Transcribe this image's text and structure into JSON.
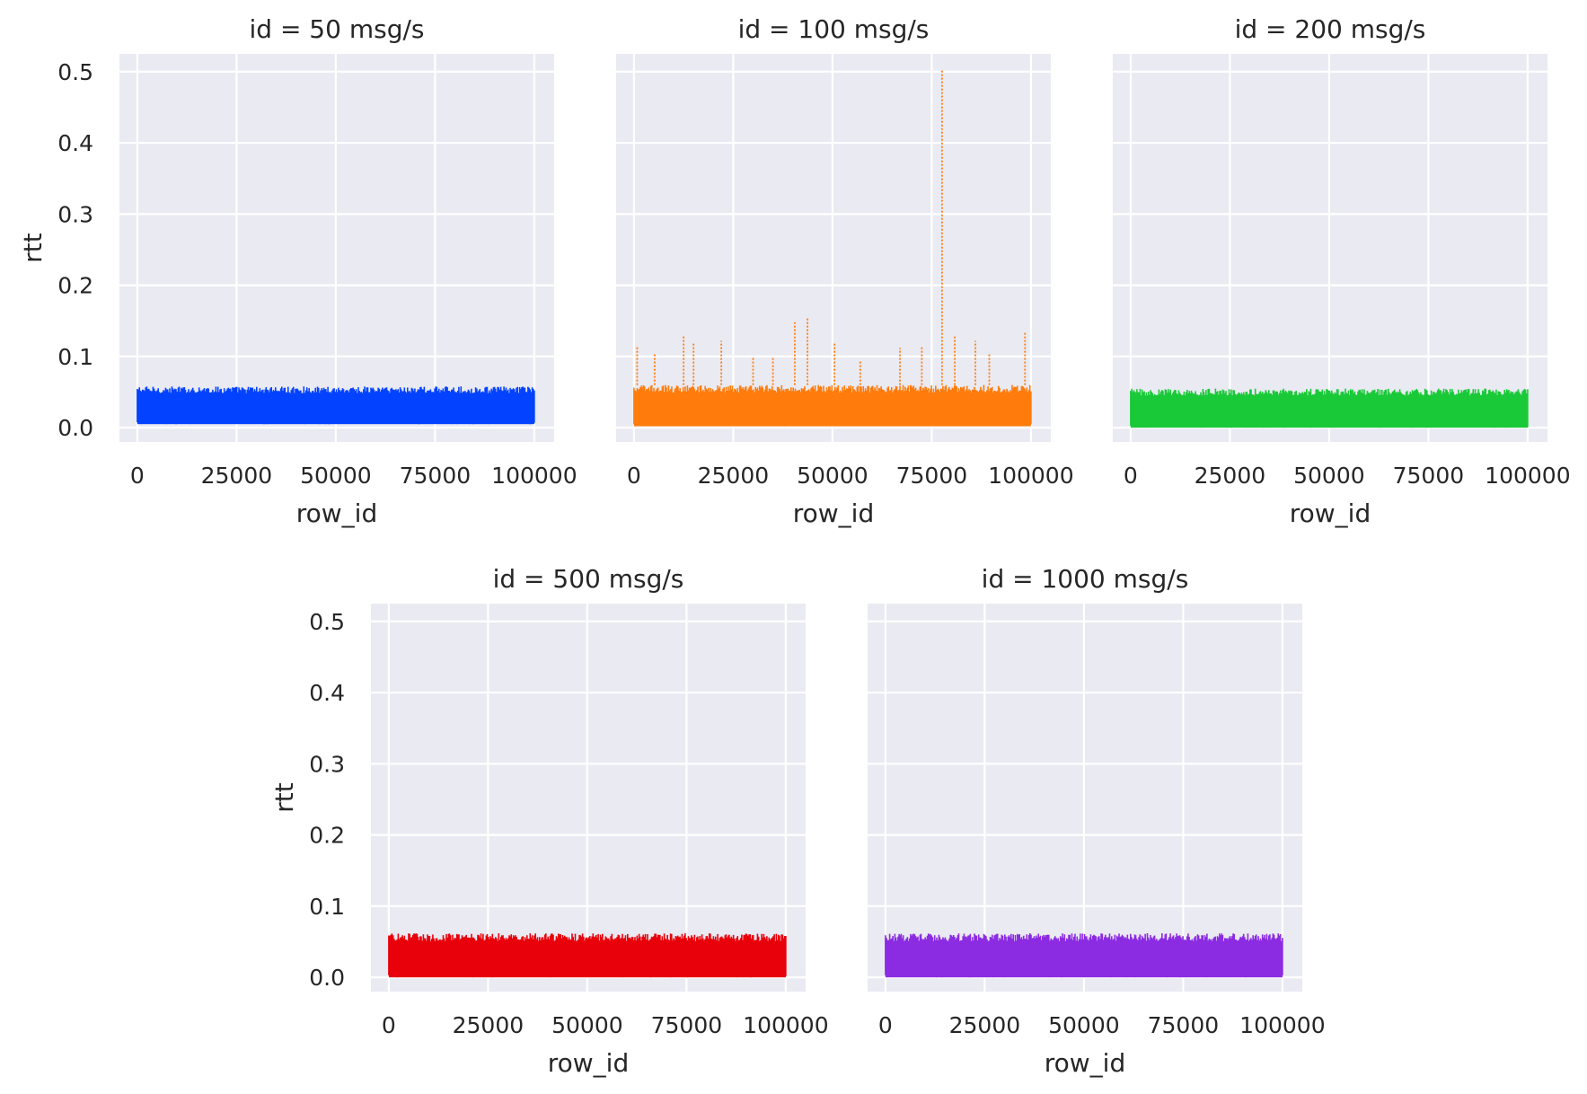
{
  "chart_data": {
    "type": "line",
    "x_label": "row_id",
    "y_label": "rtt",
    "x_ticks": [
      0,
      25000,
      50000,
      75000,
      100000
    ],
    "y_ticks": [
      0.0,
      0.1,
      0.2,
      0.3,
      0.4,
      0.5
    ],
    "x_tick_labels": [
      "0",
      "25000",
      "50000",
      "75000",
      "100000"
    ],
    "y_tick_labels": [
      "0.0",
      "0.1",
      "0.2",
      "0.3",
      "0.4",
      "0.5"
    ],
    "xlim": [
      -4500,
      105000
    ],
    "ylim": [
      -0.02,
      0.525
    ],
    "grid": true,
    "facets": [
      {
        "title": "id = 50 msg/s",
        "color": "#0343ff",
        "x_start": 0,
        "x_end": 100000,
        "rtt_floor": 0.005,
        "rtt_typical_max": 0.058,
        "spikes": []
      },
      {
        "title": "id = 100 msg/s",
        "color": "#ff7c0c",
        "x_start": 0,
        "x_end": 100000,
        "rtt_floor": 0.002,
        "rtt_typical_max": 0.06,
        "spikes": [
          {
            "x": 800,
            "rtt": 0.115
          },
          {
            "x": 5200,
            "rtt": 0.105
          },
          {
            "x": 12500,
            "rtt": 0.128
          },
          {
            "x": 15000,
            "rtt": 0.118
          },
          {
            "x": 22000,
            "rtt": 0.122
          },
          {
            "x": 30000,
            "rtt": 0.098
          },
          {
            "x": 35000,
            "rtt": 0.1
          },
          {
            "x": 40500,
            "rtt": 0.148
          },
          {
            "x": 43700,
            "rtt": 0.155
          },
          {
            "x": 50500,
            "rtt": 0.118
          },
          {
            "x": 57000,
            "rtt": 0.095
          },
          {
            "x": 67000,
            "rtt": 0.112
          },
          {
            "x": 72500,
            "rtt": 0.115
          },
          {
            "x": 77600,
            "rtt": 0.502
          },
          {
            "x": 80800,
            "rtt": 0.128
          },
          {
            "x": 86000,
            "rtt": 0.122
          },
          {
            "x": 89500,
            "rtt": 0.105
          },
          {
            "x": 98500,
            "rtt": 0.135
          }
        ]
      },
      {
        "title": "id = 200 msg/s",
        "color": "#1ac938",
        "x_start": 0,
        "x_end": 100000,
        "rtt_floor": 0.0,
        "rtt_typical_max": 0.055,
        "spikes": []
      },
      {
        "title": "id = 500 msg/s",
        "color": "#e8000b",
        "x_start": 0,
        "x_end": 100000,
        "rtt_floor": 0.0,
        "rtt_typical_max": 0.062,
        "spikes": []
      },
      {
        "title": "id = 1000 msg/s",
        "color": "#8b2be2",
        "x_start": 0,
        "x_end": 100000,
        "rtt_floor": 0.0,
        "rtt_typical_max": 0.062,
        "spikes": []
      }
    ]
  }
}
